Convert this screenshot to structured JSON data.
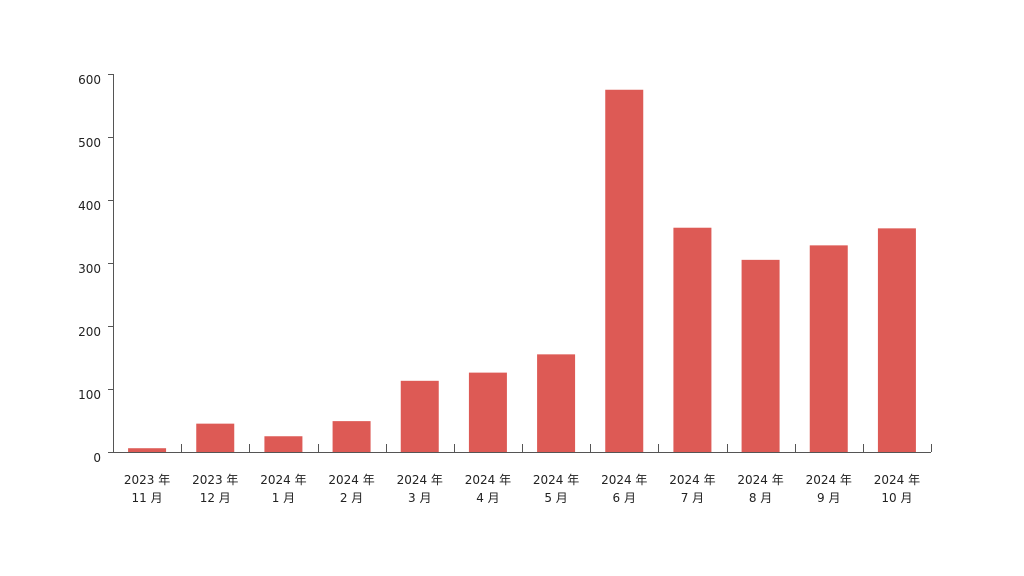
{
  "chart_data": {
    "type": "bar",
    "categories": [
      [
        "2023 年",
        "11 月"
      ],
      [
        "2023 年",
        "12 月"
      ],
      [
        "2024 年",
        "1 月"
      ],
      [
        "2024 年",
        "2 月"
      ],
      [
        "2024 年",
        "3 月"
      ],
      [
        "2024 年",
        "4 月"
      ],
      [
        "2024 年",
        "5 月"
      ],
      [
        "2024 年",
        "6 月"
      ],
      [
        "2024 年",
        "7 月"
      ],
      [
        "2024 年",
        "8 月"
      ],
      [
        "2024 年",
        "9 月"
      ],
      [
        "2024 年",
        "10 月"
      ]
    ],
    "values": [
      6,
      45,
      25,
      49,
      113,
      126,
      155,
      575,
      356,
      305,
      328,
      355
    ],
    "ylim": [
      0,
      600
    ],
    "yticks": [
      0,
      100,
      200,
      300,
      400,
      500,
      600
    ],
    "title": "",
    "xlabel": "",
    "ylabel": "",
    "bar_color": "#DD5A55",
    "grid": false
  }
}
